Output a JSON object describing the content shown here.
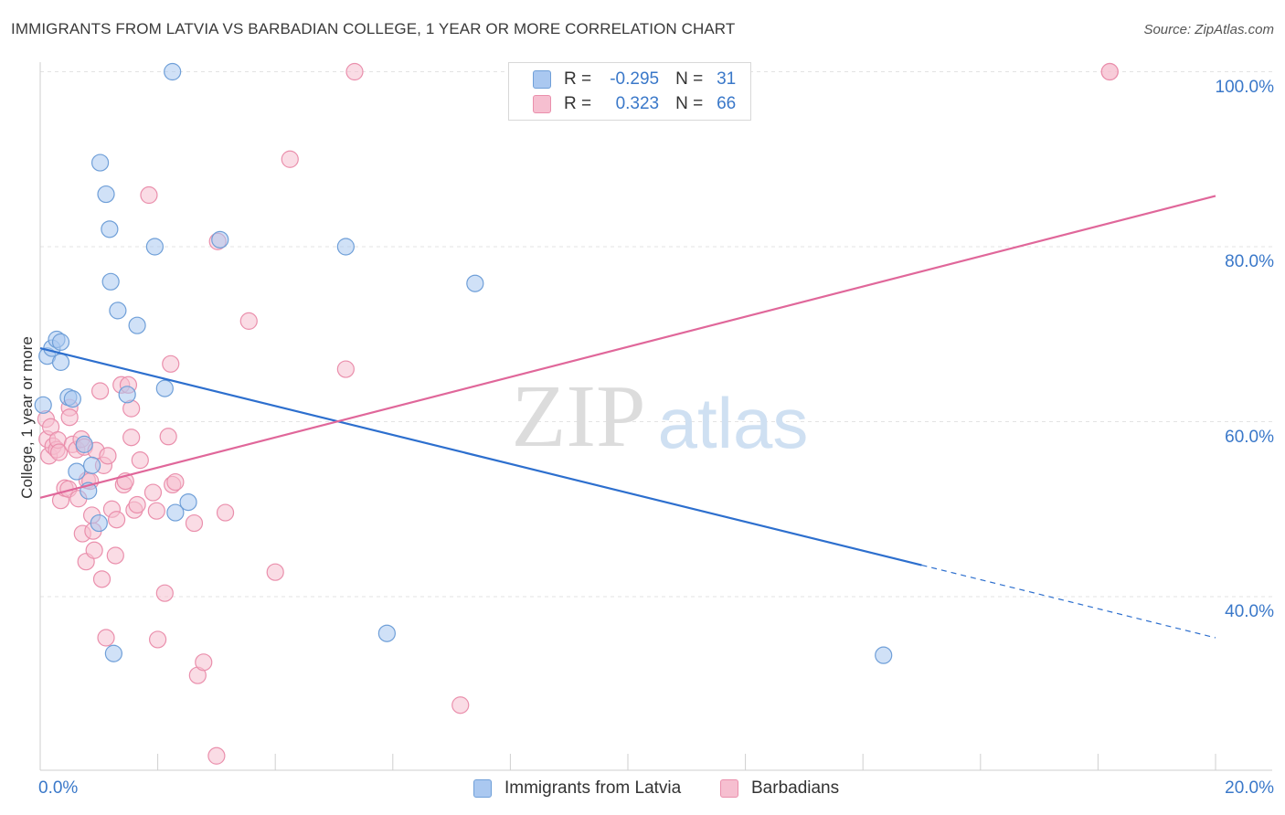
{
  "title": "IMMIGRANTS FROM LATVIA VS BARBADIAN COLLEGE, 1 YEAR OR MORE CORRELATION CHART",
  "source": "Source: ZipAtlas.com",
  "watermark": {
    "zip": "ZIP",
    "atlas": "atlas"
  },
  "legend_top": {
    "rows": [
      {
        "r_label": "R =",
        "r_value": "-0.295",
        "n_label": "N =",
        "n_value": "31",
        "series": "latvia"
      },
      {
        "r_label": "R =",
        "r_value": "0.323",
        "n_label": "N =",
        "n_value": "66",
        "series": "barbadians"
      }
    ]
  },
  "legend_bottom": {
    "latvia": "Immigrants from Latvia",
    "barbadians": "Barbadians"
  },
  "colors": {
    "latvia_fill": "#aac8f0",
    "latvia_stroke": "#6f9fd8",
    "latvia_line": "#2d6fce",
    "barbadians_fill": "#f6bfd0",
    "barbadians_stroke": "#ea8fac",
    "barbadians_line": "#e0679a",
    "tick_label": "#3a78c9",
    "grid": "#e3e3e3"
  },
  "chart_data": {
    "type": "scatter",
    "title": "IMMIGRANTS FROM LATVIA VS BARBADIAN COLLEGE, 1 YEAR OR MORE CORRELATION CHART",
    "xlabel": "",
    "ylabel": "College, 1 year or more",
    "xlim": [
      0,
      20
    ],
    "ylim": [
      20,
      102
    ],
    "x_tick_labels": [
      "0.0%",
      "20.0%"
    ],
    "y_ticks": [
      40,
      60,
      80,
      100
    ],
    "y_tick_labels": [
      "40.0%",
      "60.0%",
      "80.0%",
      "100.0%"
    ],
    "grid": true,
    "legend": "top-center",
    "series": [
      {
        "name": "Immigrants from Latvia",
        "key": "latvia",
        "R": -0.295,
        "N": 31,
        "trend": {
          "x0": 0,
          "y0": 68.4,
          "x1": 15.0,
          "y1": 43.6,
          "dash_to_x": 20.0,
          "dash_to_y": 35.3
        },
        "points": [
          [
            0.05,
            61.9
          ],
          [
            0.12,
            67.5
          ],
          [
            0.2,
            68.4
          ],
          [
            0.28,
            69.4
          ],
          [
            0.35,
            66.8
          ],
          [
            0.35,
            69.1
          ],
          [
            0.48,
            62.8
          ],
          [
            0.55,
            62.6
          ],
          [
            0.62,
            54.3
          ],
          [
            0.75,
            57.4
          ],
          [
            0.82,
            52.1
          ],
          [
            0.88,
            55.0
          ],
          [
            1.0,
            48.4
          ],
          [
            1.02,
            89.6
          ],
          [
            1.12,
            86.0
          ],
          [
            1.18,
            82.0
          ],
          [
            1.2,
            76.0
          ],
          [
            1.25,
            33.5
          ],
          [
            1.32,
            72.7
          ],
          [
            1.48,
            63.1
          ],
          [
            1.65,
            71.0
          ],
          [
            1.95,
            80.0
          ],
          [
            2.12,
            63.8
          ],
          [
            2.25,
            100.0
          ],
          [
            2.3,
            49.6
          ],
          [
            2.52,
            50.8
          ],
          [
            3.06,
            80.8
          ],
          [
            5.2,
            80.0
          ],
          [
            5.9,
            35.8
          ],
          [
            7.4,
            75.8
          ],
          [
            14.35,
            33.3
          ]
        ]
      },
      {
        "name": "Barbadians",
        "key": "barbadians",
        "R": 0.323,
        "N": 66,
        "trend": {
          "x0": 0,
          "y0": 51.3,
          "x1": 20.0,
          "y1": 85.8
        },
        "points": [
          [
            0.1,
            60.3
          ],
          [
            0.12,
            58.0
          ],
          [
            0.15,
            56.1
          ],
          [
            0.18,
            59.4
          ],
          [
            0.22,
            57.2
          ],
          [
            0.28,
            56.8
          ],
          [
            0.3,
            57.9
          ],
          [
            0.32,
            56.5
          ],
          [
            0.35,
            51.0
          ],
          [
            0.42,
            52.4
          ],
          [
            0.48,
            52.3
          ],
          [
            0.5,
            61.6
          ],
          [
            0.5,
            60.5
          ],
          [
            0.55,
            57.4
          ],
          [
            0.62,
            56.8
          ],
          [
            0.65,
            51.2
          ],
          [
            0.7,
            58.0
          ],
          [
            0.72,
            47.2
          ],
          [
            0.75,
            57.1
          ],
          [
            0.78,
            44.0
          ],
          [
            0.8,
            53.3
          ],
          [
            0.85,
            53.2
          ],
          [
            0.88,
            49.3
          ],
          [
            0.9,
            47.5
          ],
          [
            0.92,
            45.3
          ],
          [
            0.95,
            56.7
          ],
          [
            1.02,
            63.5
          ],
          [
            1.05,
            42.0
          ],
          [
            1.08,
            55.0
          ],
          [
            1.12,
            35.3
          ],
          [
            1.15,
            56.1
          ],
          [
            1.22,
            50.0
          ],
          [
            1.28,
            44.7
          ],
          [
            1.3,
            48.8
          ],
          [
            1.38,
            64.2
          ],
          [
            1.42,
            52.8
          ],
          [
            1.45,
            53.2
          ],
          [
            1.5,
            64.2
          ],
          [
            1.55,
            61.5
          ],
          [
            1.55,
            58.2
          ],
          [
            1.6,
            49.9
          ],
          [
            1.65,
            50.5
          ],
          [
            1.7,
            55.6
          ],
          [
            1.85,
            85.9
          ],
          [
            1.92,
            51.9
          ],
          [
            1.98,
            49.8
          ],
          [
            2.0,
            35.1
          ],
          [
            2.12,
            40.4
          ],
          [
            2.18,
            58.3
          ],
          [
            2.22,
            66.6
          ],
          [
            2.25,
            52.8
          ],
          [
            2.3,
            53.1
          ],
          [
            2.62,
            48.4
          ],
          [
            2.68,
            31.0
          ],
          [
            2.78,
            32.5
          ],
          [
            3.0,
            21.8
          ],
          [
            3.02,
            80.6
          ],
          [
            3.15,
            49.6
          ],
          [
            3.55,
            71.5
          ],
          [
            4.0,
            42.8
          ],
          [
            4.25,
            90.0
          ],
          [
            5.2,
            66.0
          ],
          [
            5.35,
            100.0
          ],
          [
            7.15,
            27.6
          ],
          [
            18.2,
            100.0
          ],
          [
            18.2,
            100.0
          ]
        ]
      }
    ]
  }
}
